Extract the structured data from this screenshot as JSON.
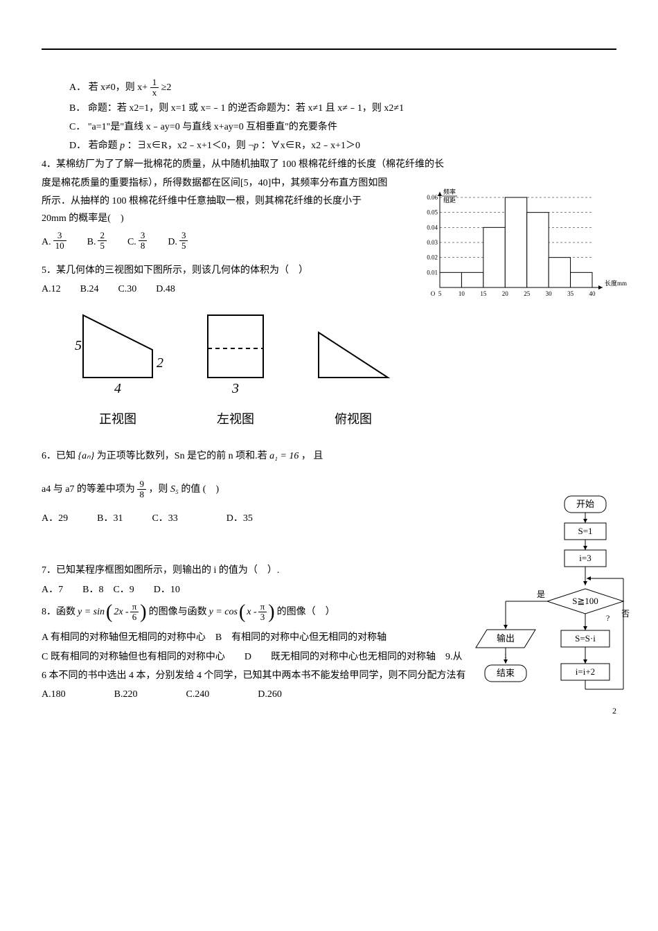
{
  "q3": {
    "A": "A．  若 x≠0，则 x+",
    "A_tail": "≥2",
    "A_frac": {
      "num": "1",
      "den": "x"
    },
    "B": "B．  命题：若 x2=1，则 x=1 或 x=﹣1 的逆否命题为：若 x≠1 且 x≠﹣1，则 x2≠1",
    "C": "C．  \"a=1\"是\"直线 x﹣ay=0 与直线 x+ay=0 互相垂直\"的充要条件",
    "D_pre": "D．  若命题",
    "D_p1": " ：∃x∈R，x2﹣x+1＜0，则",
    "D_p2": " ：∀x∈R，x2﹣x+1＞0"
  },
  "q4": {
    "stem1": "4．某棉纺厂为了了解一批棉花的质量，从中随机抽取了 100 根棉花纤维的长度（棉花纤维的长",
    "stem2": "度是棉花质量的重要指标），所得数据都在区间[5，40]中，其频率分布直方图如图所示．从抽样的 100 根棉花纤维中任意抽取一根，则其棉花纤维的长度小于 20mm 的概率是(　)",
    "opts": {
      "A": {
        "label": "A.",
        "num": "3",
        "den": "10"
      },
      "B": {
        "label": "B.",
        "num": "2",
        "den": "5"
      },
      "C": {
        "label": "C.",
        "num": "3",
        "den": "8"
      },
      "D": {
        "label": "D.",
        "num": "3",
        "den": "5"
      }
    }
  },
  "q5": {
    "stem": "5．某几何体的三视图如下图所示，则该几何体的体积为（　）",
    "opts": "A.12　　B.24　　C.30　　D.48",
    "labels": {
      "front": "正视图",
      "left": "左视图",
      "top": "俯视图"
    },
    "dims": {
      "h": "5",
      "d": "2",
      "w": "4",
      "lw": "3"
    }
  },
  "q6": {
    "pre": "6．已知",
    "seq": "{aₙ}",
    "mid1": " 为正项等比数列，Sn 是它的前 n 项和.若",
    "a1": "a₁ = 16",
    "mid2": " ， 且",
    "line2_pre": "a4 与 a7 的等差中项为",
    "frac": {
      "num": "9",
      "den": "8"
    },
    "line2_post": " ，则",
    "S5": "S₅",
    "line2_tail": " 的值 (　)",
    "opts": "A．29　　　B．31　　　C．33　　　　　D．35"
  },
  "q7": {
    "stem": "7．已知某程序框图如图所示，则输出的 i 的值为（　）.",
    "opts": "A．7　　B．8　C．9　　D．10"
  },
  "q8": {
    "pre": "8．函数",
    "y1_pre": "y = sin",
    "y1_arg_pre": "2x -",
    "y1_frac": {
      "num": "π",
      "den": "6"
    },
    "mid": "的图像与函数",
    "y2_pre": "y = cos",
    "y2_arg_pre": "x -",
    "y2_frac": {
      "num": "π",
      "den": "3"
    },
    "post": "的图像（　）",
    "optA": "A 有相同的对称轴但无相同的对称中心　B　有相同的对称中心但无相同的对称轴",
    "optC": "C 既有相同的对称轴但也有相同的对称中心　　D　　既无相同的对称中心也无相同的对称轴　9.从",
    "q9b": "6 本不同的书中选出 4 本，分别发给 4 个同学，已知其中两本书不能发给甲同学，则不同分配方法有",
    "q9opts": "A.180　　　　　B.220　　　　　C.240　　　　　D.260"
  },
  "histogram": {
    "ylabel": "频率\n组距",
    "xlabel": "长度mm",
    "xticks": [
      "5",
      "10",
      "15",
      "20",
      "25",
      "30",
      "35",
      "40"
    ],
    "yticks": [
      "0.01",
      "0.02",
      "0.03",
      "0.04",
      "0.05",
      "0.06"
    ],
    "bars": [
      {
        "x": 5,
        "h": 0.01
      },
      {
        "x": 10,
        "h": 0.01
      },
      {
        "x": 15,
        "h": 0.04
      },
      {
        "x": 20,
        "h": 0.06
      },
      {
        "x": 25,
        "h": 0.05
      },
      {
        "x": 30,
        "h": 0.02
      },
      {
        "x": 35,
        "h": 0.01
      }
    ],
    "colors": {
      "axis": "#000",
      "bar": "#fff",
      "barStroke": "#000",
      "dashed": "#000"
    },
    "fontsize": 9
  },
  "flowchart": {
    "nodes": {
      "start": "开始",
      "s1": "S=1",
      "i3": "i=3",
      "cond": "S≧100",
      "out": "输出",
      "end": "结束",
      "ssi": "S=S·i",
      "ii2": "i=i+2",
      "yes": "是",
      "no": "否",
      "q": "?",
      "ilabel": "i"
    },
    "colors": {
      "stroke": "#000",
      "fill": "#fff"
    },
    "fontsize": 13
  },
  "page_num": "2"
}
